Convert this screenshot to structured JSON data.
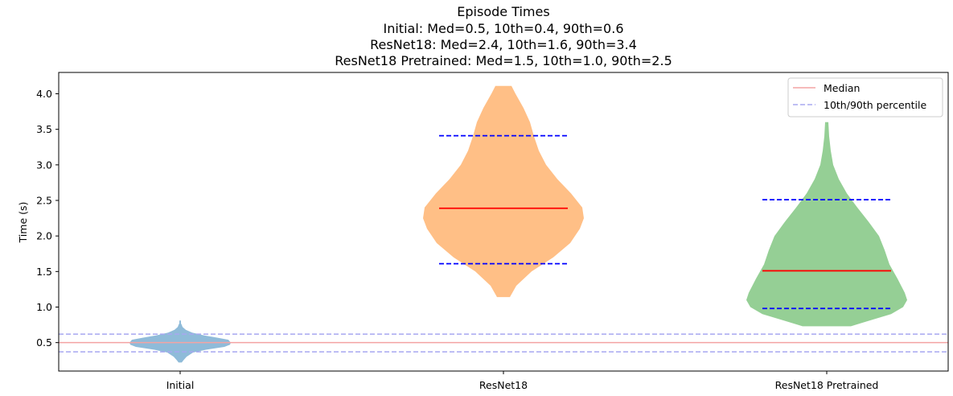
{
  "chart_data": {
    "type": "violin",
    "title": "Episode Times",
    "subtitle": [
      "Initial: Med=0.5, 10th=0.4, 90th=0.6",
      "ResNet18: Med=2.4, 10th=1.6, 90th=3.4",
      "ResNet18 Pretrained: Med=1.5, 10th=1.0, 90th=2.5"
    ],
    "xlabel": "",
    "ylabel": "Time (s)",
    "ylim": [
      0.1,
      4.3
    ],
    "yticks": [
      0.5,
      1.0,
      1.5,
      2.0,
      2.5,
      3.0,
      3.5,
      4.0
    ],
    "ytick_labels": [
      "0.5",
      "1.0",
      "1.5",
      "2.0",
      "2.5",
      "3.0",
      "3.5",
      "4.0"
    ],
    "categories": [
      "Initial",
      "ResNet18",
      "ResNet18 Pretrained"
    ],
    "series": [
      {
        "name": "Initial",
        "color": "#1f77b4",
        "median": 0.5,
        "p10": 0.37,
        "p90": 0.62,
        "min": 0.22,
        "max": 0.81,
        "profile": [
          [
            0.22,
            0.02
          ],
          [
            0.25,
            0.04
          ],
          [
            0.3,
            0.08
          ],
          [
            0.36,
            0.16
          ],
          [
            0.4,
            0.32
          ],
          [
            0.44,
            0.55
          ],
          [
            0.47,
            0.62
          ],
          [
            0.5,
            0.63
          ],
          [
            0.54,
            0.6
          ],
          [
            0.57,
            0.46
          ],
          [
            0.6,
            0.3
          ],
          [
            0.64,
            0.15
          ],
          [
            0.68,
            0.07
          ],
          [
            0.72,
            0.03
          ],
          [
            0.75,
            0.02
          ],
          [
            0.77,
            0.01
          ],
          [
            0.81,
            0.01
          ]
        ]
      },
      {
        "name": "ResNet18",
        "color": "#ff7f0e",
        "median": 2.39,
        "p10": 1.61,
        "p90": 3.41,
        "min": 1.14,
        "max": 4.11,
        "profile": [
          [
            1.14,
            0.08
          ],
          [
            1.3,
            0.16
          ],
          [
            1.5,
            0.35
          ],
          [
            1.7,
            0.62
          ],
          [
            1.9,
            0.83
          ],
          [
            2.1,
            0.95
          ],
          [
            2.25,
            1.0
          ],
          [
            2.4,
            0.98
          ],
          [
            2.6,
            0.84
          ],
          [
            2.8,
            0.67
          ],
          [
            3.0,
            0.53
          ],
          [
            3.2,
            0.44
          ],
          [
            3.4,
            0.38
          ],
          [
            3.6,
            0.33
          ],
          [
            3.8,
            0.25
          ],
          [
            4.0,
            0.15
          ],
          [
            4.11,
            0.1
          ]
        ]
      },
      {
        "name": "ResNet18 Pretrained",
        "color": "#2ca02c",
        "median": 1.51,
        "p10": 0.98,
        "p90": 2.51,
        "min": 0.73,
        "max": 3.6,
        "profile": [
          [
            0.73,
            0.3
          ],
          [
            0.8,
            0.5
          ],
          [
            0.9,
            0.8
          ],
          [
            1.0,
            0.95
          ],
          [
            1.1,
            1.0
          ],
          [
            1.2,
            0.97
          ],
          [
            1.4,
            0.88
          ],
          [
            1.6,
            0.78
          ],
          [
            1.8,
            0.72
          ],
          [
            2.0,
            0.65
          ],
          [
            2.2,
            0.52
          ],
          [
            2.4,
            0.38
          ],
          [
            2.6,
            0.25
          ],
          [
            2.8,
            0.15
          ],
          [
            3.0,
            0.08
          ],
          [
            3.2,
            0.05
          ],
          [
            3.4,
            0.03
          ],
          [
            3.6,
            0.02
          ]
        ]
      }
    ],
    "reference_lines": {
      "median": 0.5,
      "p10": 0.37,
      "p90": 0.62
    },
    "legend": {
      "position": "top-right",
      "entries": [
        {
          "label": "Median",
          "style": "solid",
          "color": "#f4a3a3"
        },
        {
          "label": "10th/90th percentile",
          "style": "dashed",
          "color": "#a8a8f0"
        }
      ]
    },
    "colors": {
      "median": "#ff0000",
      "percentile": "#0000ff"
    },
    "grid": false
  }
}
